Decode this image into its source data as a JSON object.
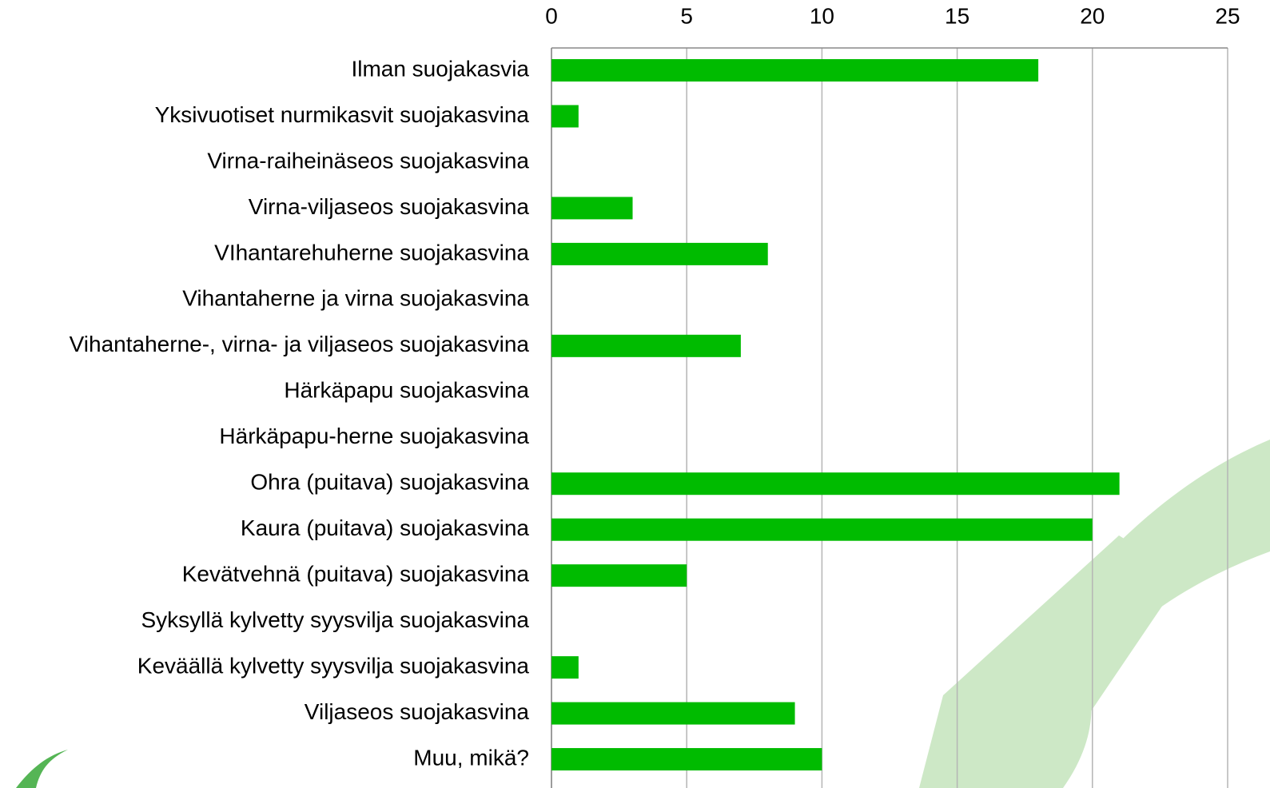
{
  "chart_data": {
    "type": "barh",
    "categories": [
      "Ilman suojakasvia",
      "Yksivuotiset nurmikasvit suojakasvina",
      "Virna-raiheinäseos suojakasvina",
      "Virna-viljaseos suojakasvina",
      "VIhantarehuherne suojakasvina",
      "Vihantaherne ja virna suojakasvina",
      "Vihantaherne-, virna- ja viljaseos suojakasvina",
      "Härkäpapu suojakasvina",
      "Härkäpapu-herne suojakasvina",
      "Ohra (puitava) suojakasvina",
      "Kaura (puitava) suojakasvina",
      "Kevätvehnä (puitava) suojakasvina",
      "Syksyllä kylvetty syysvilja suojakasvina",
      "Keväällä kylvetty syysvilja suojakasvina",
      "Viljaseos suojakasvina",
      "Muu, mikä?"
    ],
    "values": [
      18,
      1,
      0,
      3,
      8,
      0,
      7,
      0,
      0,
      21,
      20,
      5,
      0,
      1,
      9,
      10
    ],
    "color": "#00bb00",
    "xlim": [
      0,
      25
    ],
    "xticks": [
      0,
      5,
      10,
      15,
      20,
      25
    ],
    "grid": true
  }
}
